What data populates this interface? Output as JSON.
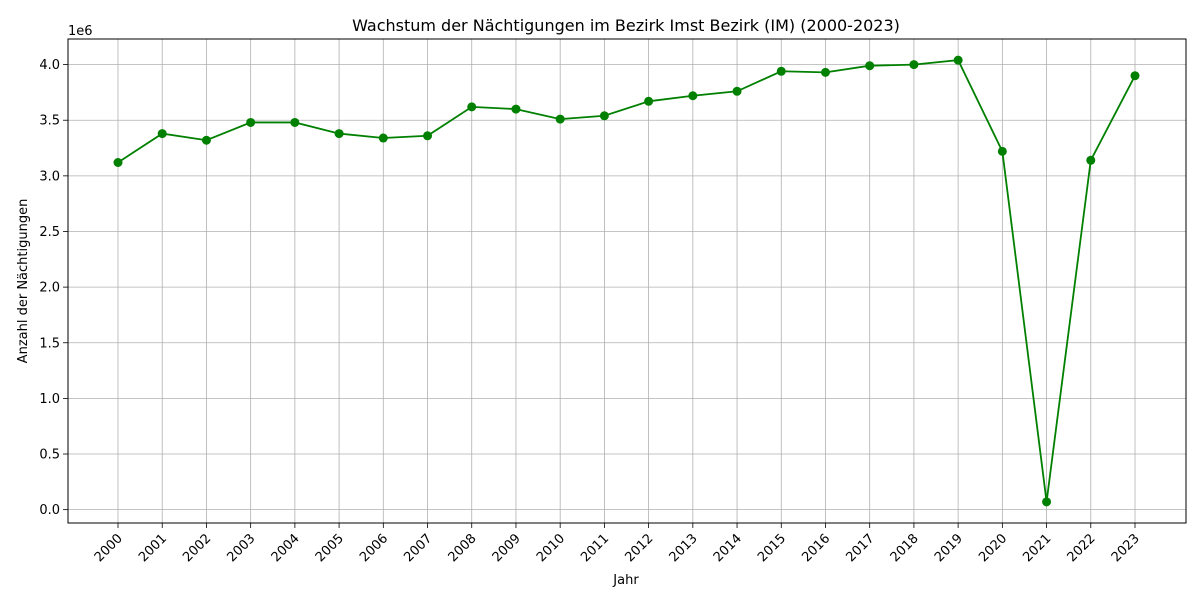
{
  "chart_data": {
    "type": "line",
    "title": "Wachstum der Nächtigungen im Bezirk Imst Bezirk (IM) (2000-2023)",
    "xlabel": "Jahr",
    "ylabel": "Anzahl der Nächtigungen",
    "y_offset_label": "1e6",
    "ylim": [
      -0.12,
      4.23
    ],
    "y_ticks": [
      0.0,
      0.5,
      1.0,
      1.5,
      2.0,
      2.5,
      3.0,
      3.5,
      4.0
    ],
    "y_tick_labels": [
      "0.0",
      "0.5",
      "1.0",
      "1.5",
      "2.0",
      "2.5",
      "3.0",
      "3.5",
      "4.0"
    ],
    "x": [
      "2000",
      "2001",
      "2002",
      "2003",
      "2004",
      "2005",
      "2006",
      "2007",
      "2008",
      "2009",
      "2010",
      "2011",
      "2012",
      "2013",
      "2014",
      "2015",
      "2016",
      "2017",
      "2018",
      "2019",
      "2020",
      "2021",
      "2022",
      "2023"
    ],
    "series": [
      {
        "values": [
          3.12,
          3.38,
          3.32,
          3.48,
          3.48,
          3.38,
          3.34,
          3.36,
          3.62,
          3.6,
          3.51,
          3.54,
          3.67,
          3.72,
          3.76,
          3.94,
          3.93,
          3.99,
          4.0,
          4.04,
          3.22,
          0.07,
          3.14,
          3.9
        ],
        "color": "#008000",
        "marker": "circle"
      }
    ],
    "grid": true,
    "legend": "none"
  }
}
